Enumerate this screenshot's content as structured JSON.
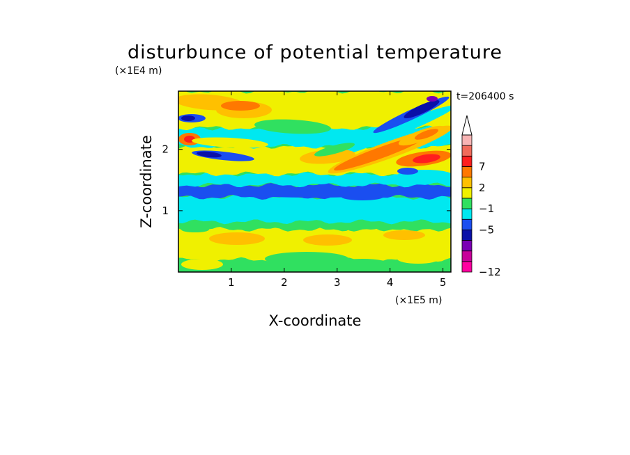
{
  "chart_data": {
    "type": "heatmap",
    "title": "disturbunce of potential temperature",
    "time_label": "t=206400 s",
    "xlabel": "X-coordinate",
    "ylabel": "Z-coordinate",
    "x_unit": "(×1E5 m)",
    "y_unit": "(×1E4 m)",
    "xlim": [
      0,
      5.15
    ],
    "ylim": [
      0,
      2.95
    ],
    "x_ticks": [
      "1",
      "2",
      "3",
      "4",
      "5"
    ],
    "y_ticks": [
      "1",
      "2"
    ],
    "colorbar": {
      "extend_max": true,
      "tick_labels": [
        "7",
        "2",
        "−1",
        "−5",
        "−12"
      ],
      "colors": [
        "#ff00a0",
        "#c8009a",
        "#7a00b4",
        "#0a10a8",
        "#1a4ef0",
        "#00e8f0",
        "#30e060",
        "#f0f000",
        "#ffc000",
        "#ff7800",
        "#ff1e1e",
        "#f06a5a",
        "#f7b4b4"
      ]
    },
    "field_description": "Layered potential temperature disturbance with a strong negative band near z≈1.3, cyan layer z≈0.9–1.2, warm (yellow) layer below z≈0.8, and tilted warm/cold bands aloft on the right side.",
    "bands": [
      {
        "z0": 0.0,
        "z1": 0.2,
        "level": "green"
      },
      {
        "z0": 0.2,
        "z1": 0.7,
        "level": "yellow"
      },
      {
        "z0": 0.7,
        "z1": 0.82,
        "level": "green"
      },
      {
        "z0": 0.82,
        "z1": 1.22,
        "level": "cyan"
      },
      {
        "z0": 1.22,
        "z1": 1.42,
        "level": "blue"
      },
      {
        "z0": 1.42,
        "z1": 1.6,
        "level": "cyan"
      },
      {
        "z0": 1.6,
        "z1": 2.05,
        "level": "yellow"
      },
      {
        "z0": 2.05,
        "z1": 2.35,
        "level": "cyan"
      },
      {
        "z0": 2.35,
        "z1": 2.95,
        "level": "yellow"
      }
    ]
  }
}
